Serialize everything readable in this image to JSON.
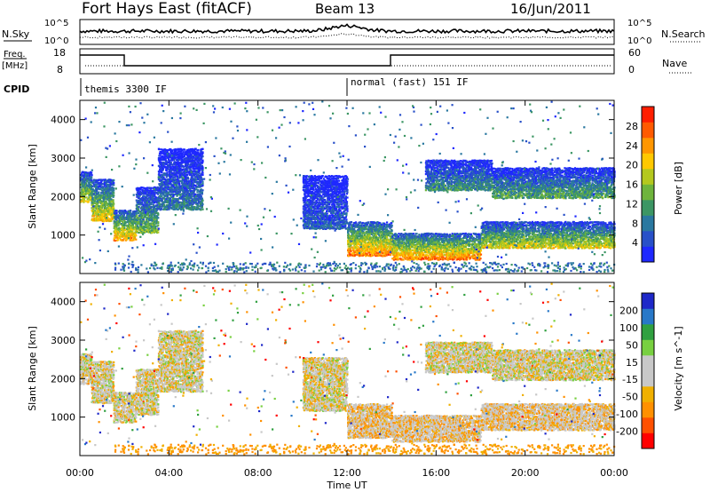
{
  "header": {
    "station": "Fort Hays East (fitACF)",
    "beam": "Beam 13",
    "date": "16/Jun/2011"
  },
  "noise_panel": {
    "left_label": "N.Sky",
    "right_label": "N.Search",
    "left_ticks": [
      "10^5",
      "10^0"
    ],
    "right_ticks": [
      "10^5",
      "10^0"
    ]
  },
  "freq_panel": {
    "left_label_1": "Freq.",
    "left_label_2": "[MHz]",
    "left_ticks": [
      "18",
      "8"
    ],
    "right_label": "Nave",
    "right_ticks": [
      "60",
      "0"
    ]
  },
  "cpid": {
    "label": "CPID",
    "segments": [
      {
        "label": "themis 3300 IF",
        "start_hour": 0
      },
      {
        "label": "normal (fast) 151 IF",
        "start_hour": 12
      }
    ]
  },
  "colors": {
    "power": [
      "#1e28ff",
      "#2850c8",
      "#2a78a0",
      "#3c9664",
      "#6eb43c",
      "#b4c81e",
      "#ffc800",
      "#ff9600",
      "#ff5a00",
      "#ff1e00"
    ],
    "velocity": [
      "#ff0000",
      "#ff5000",
      "#ff9000",
      "#f0b000",
      "#c8c8c8",
      "#c8c8c8",
      "#78d040",
      "#30a040",
      "#2878c8",
      "#1e28c8"
    ]
  },
  "chart_data": [
    {
      "type": "heatmap",
      "name": "power",
      "ylabel": "Slant Range [km]",
      "ylim": [
        0,
        4500
      ],
      "yticks": [
        "1000",
        "2000",
        "3000",
        "4000"
      ],
      "xlim_hours": [
        0,
        24
      ],
      "colorbar_label": "Power [dB]",
      "colorbar_ticks": [
        "4",
        "8",
        "12",
        "16",
        "20",
        "24",
        "28"
      ],
      "colorbar_range": [
        0,
        30
      ],
      "regions": [
        {
          "t0": 0.0,
          "t1": 0.5,
          "r_low": 1900,
          "r_high": 2700,
          "peak": 22
        },
        {
          "t0": 0.5,
          "t1": 1.5,
          "r_low": 1400,
          "r_high": 2500,
          "peak": 24
        },
        {
          "t0": 1.5,
          "t1": 2.5,
          "r_low": 900,
          "r_high": 1700,
          "peak": 26
        },
        {
          "t0": 2.5,
          "t1": 3.5,
          "r_low": 1100,
          "r_high": 2300,
          "peak": 18
        },
        {
          "t0": 3.5,
          "t1": 5.5,
          "r_low": 1700,
          "r_high": 3300,
          "peak": 12
        },
        {
          "t0": 10.0,
          "t1": 12.0,
          "r_low": 1200,
          "r_high": 2600,
          "peak": 10
        },
        {
          "t0": 12.0,
          "t1": 14.0,
          "r_low": 500,
          "r_high": 1400,
          "peak": 28
        },
        {
          "t0": 14.0,
          "t1": 18.0,
          "r_low": 400,
          "r_high": 1100,
          "peak": 28
        },
        {
          "t0": 18.0,
          "t1": 24.0,
          "r_low": 700,
          "r_high": 1400,
          "peak": 22
        },
        {
          "t0": 15.5,
          "t1": 18.5,
          "r_low": 2200,
          "r_high": 3000,
          "peak": 14
        },
        {
          "t0": 18.5,
          "t1": 24.0,
          "r_low": 2000,
          "r_high": 2800,
          "peak": 16
        }
      ]
    },
    {
      "type": "heatmap",
      "name": "velocity",
      "ylabel": "Slant Range [km]",
      "ylim": [
        0,
        4500
      ],
      "yticks": [
        "1000",
        "2000",
        "3000",
        "4000"
      ],
      "xlim_hours": [
        0,
        24
      ],
      "xticks": [
        "00:00",
        "04:00",
        "08:00",
        "12:00",
        "16:00",
        "20:00",
        "00:00"
      ],
      "xlabel": "Time UT",
      "colorbar_label": "Velocity [m s^-1]",
      "colorbar_ticks": [
        "-200",
        "-100",
        "-50",
        "-15",
        "15",
        "50",
        "100",
        "200"
      ],
      "colorbar_range": [
        -250,
        250
      ]
    }
  ]
}
